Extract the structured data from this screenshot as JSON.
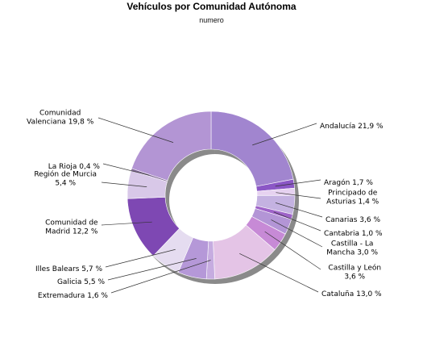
{
  "chart_data": {
    "type": "pie",
    "variant": "donut",
    "title": "Vehículos por Comunidad Autónoma",
    "subtitle": "numero",
    "slices": [
      {
        "label": [
          "Andalucía 21,9 %"
        ],
        "value": 21.9,
        "color": "#a185cf"
      },
      {
        "label": [
          "Aragón 1,7 %"
        ],
        "value": 1.7,
        "color": "#8b57c6"
      },
      {
        "label": [
          "Principado de",
          "Asturias 1,4 %"
        ],
        "value": 1.4,
        "color": "#e6d2f0"
      },
      {
        "label": [
          "Canarias 3,6 %"
        ],
        "value": 3.6,
        "color": "#c4b2e1"
      },
      {
        "label": [
          "Cantabria 1,0 %"
        ],
        "value": 1.0,
        "color": "#9e63c8"
      },
      {
        "label": [
          "Castilla - La",
          "Mancha 3,0 %"
        ],
        "value": 3.0,
        "color": "#b395d6"
      },
      {
        "label": [
          "Castilla y León",
          "3,6 %"
        ],
        "value": 3.6,
        "color": "#c78ad6"
      },
      {
        "label": [
          "Cataluña 13,0 %"
        ],
        "value": 13.0,
        "color": "#e4c4e6"
      },
      {
        "label": [
          "Extremadura 1,6 %"
        ],
        "value": 1.6,
        "color": "#c6ace0"
      },
      {
        "label": [
          "Galicia 5,5 %"
        ],
        "value": 5.5,
        "color": "#b598d8"
      },
      {
        "label": [
          "Illes Balears 5,7 %"
        ],
        "value": 5.7,
        "color": "#e5dcf0"
      },
      {
        "label": [
          "Comunidad de",
          "Madrid 12,2 %"
        ],
        "value": 12.2,
        "color": "#7e48b3"
      },
      {
        "label": [
          "Región de Murcia",
          "5,4 %"
        ],
        "value": 5.4,
        "color": "#d8c8e8"
      },
      {
        "label": [
          "La Rioja 0,4 %"
        ],
        "value": 0.4,
        "color": "#7a6290"
      },
      {
        "label": [
          "Comunidad",
          "Valenciana 19,8 %"
        ],
        "value": 19.8,
        "color": "#b395d4"
      }
    ]
  }
}
